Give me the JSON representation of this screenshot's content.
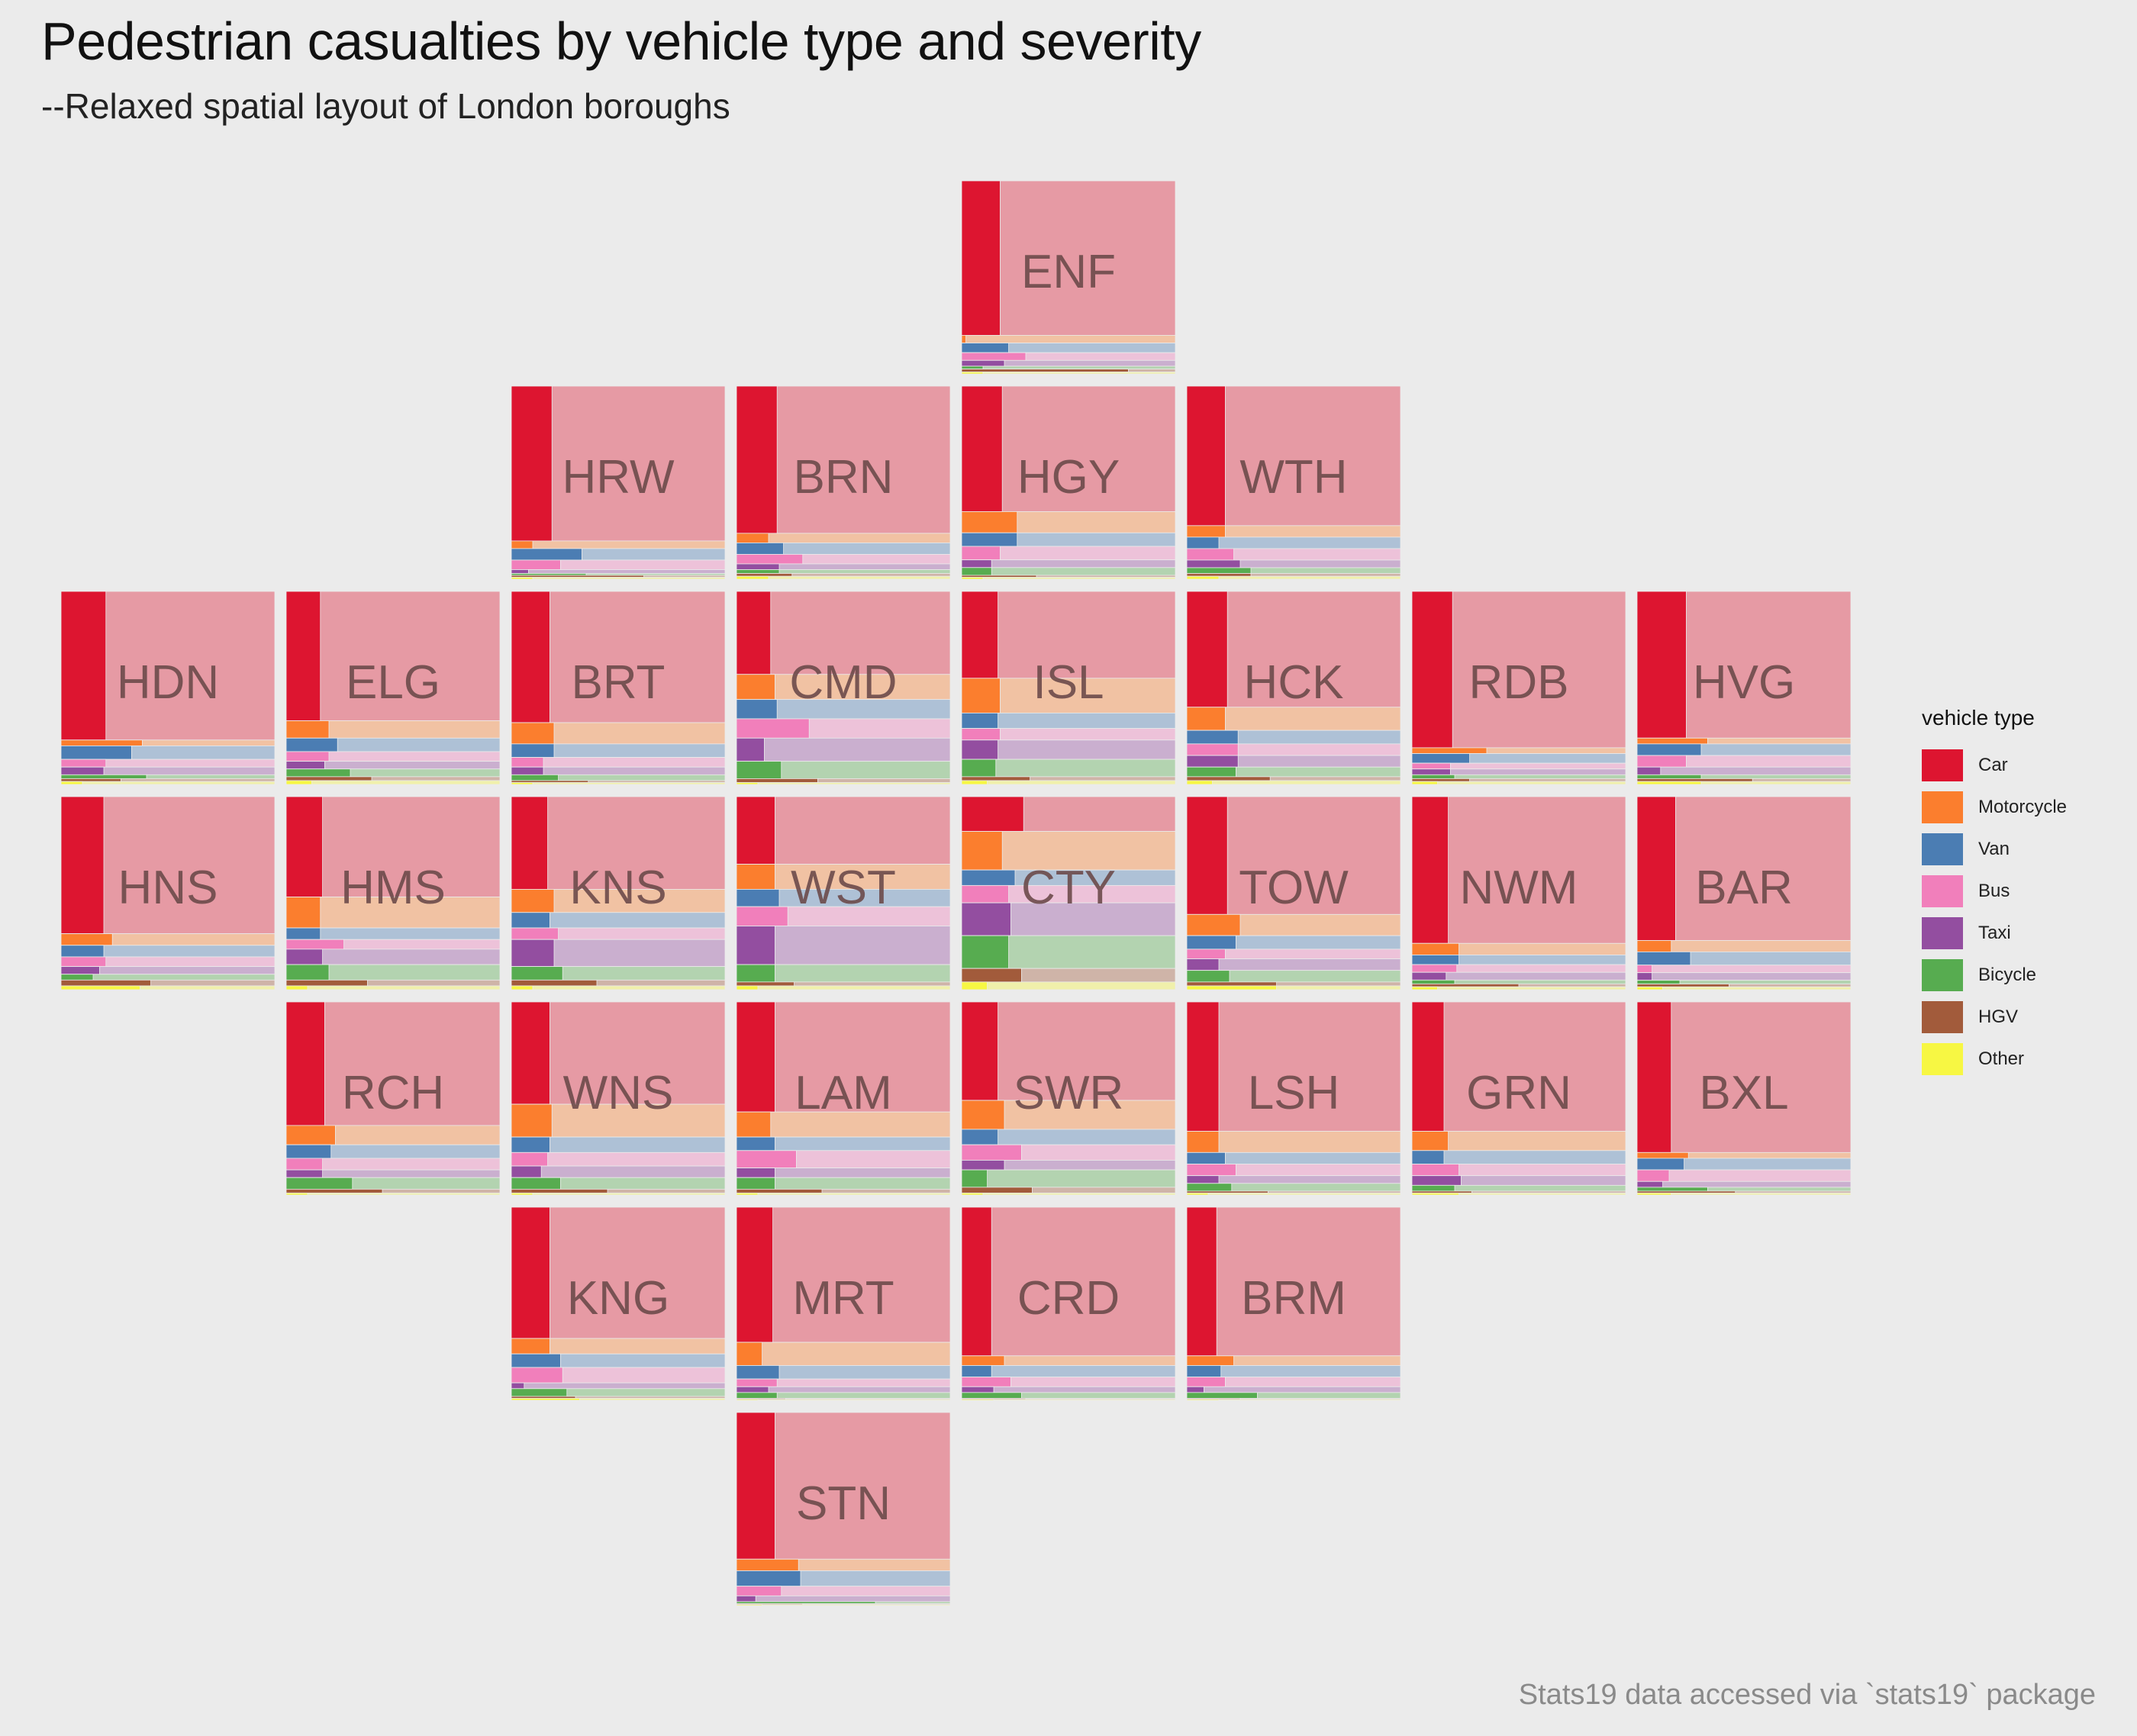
{
  "chart_data": {
    "type": "bar",
    "title": "Pedestrian casualties by vehicle type and severity",
    "subtitle": "--Relaxed spatial layout of London boroughs",
    "caption": "Stats19 data accessed via `stats19` package",
    "legend": {
      "title": "vehicle type",
      "placement": "right",
      "entries": [
        "Car",
        "Motorcycle",
        "Van",
        "Bus",
        "Taxi",
        "Bicycle",
        "HGV",
        "Other"
      ]
    },
    "colors": {
      "Car": "#dd1530",
      "Motorcycle": "#fb7e2e",
      "Van": "#4b7db3",
      "Bus": "#f17fbb",
      "Taxi": "#934ea0",
      "Bicycle": "#57ac50",
      "HGV": "#a25b3b",
      "Other": "#f7f743"
    },
    "series_order": [
      "Car",
      "Motorcycle",
      "Van",
      "Bus",
      "Taxi",
      "Bicycle",
      "HGV",
      "Other"
    ],
    "panels": [
      {
        "borough": "ENF",
        "col": 4,
        "row": 0,
        "share": [
          0.8,
          0.04,
          0.05,
          0.04,
          0.03,
          0.015,
          0.015,
          0.01
        ],
        "ksi": [
          0.18,
          0.02,
          0.22,
          0.3,
          0.2,
          0.1,
          0.78,
          0.1
        ]
      },
      {
        "borough": "HRW",
        "col": 2,
        "row": 1,
        "share": [
          0.81,
          0.04,
          0.06,
          0.05,
          0.02,
          0.01,
          0.01,
          0.01
        ],
        "ksi": [
          0.19,
          0.1,
          0.33,
          0.23,
          0.08,
          0.35,
          0.62,
          0.1
        ]
      },
      {
        "borough": "BRN",
        "col": 3,
        "row": 1,
        "share": [
          0.77,
          0.05,
          0.06,
          0.05,
          0.03,
          0.02,
          0.015,
          0.015
        ],
        "ksi": [
          0.19,
          0.15,
          0.22,
          0.31,
          0.2,
          0.2,
          0.26,
          0.15
        ]
      },
      {
        "borough": "HGY",
        "col": 4,
        "row": 1,
        "share": [
          0.65,
          0.11,
          0.07,
          0.07,
          0.04,
          0.04,
          0.01,
          0.01
        ],
        "ksi": [
          0.19,
          0.26,
          0.26,
          0.18,
          0.14,
          0.14,
          0.35,
          0.1
        ]
      },
      {
        "borough": "WTH",
        "col": 5,
        "row": 1,
        "share": [
          0.73,
          0.06,
          0.06,
          0.06,
          0.04,
          0.03,
          0.015,
          0.015
        ],
        "ksi": [
          0.18,
          0.18,
          0.15,
          0.22,
          0.25,
          0.3,
          0.3,
          0.15
        ]
      },
      {
        "borough": "HDN",
        "col": 0,
        "row": 2,
        "share": [
          0.77,
          0.03,
          0.07,
          0.04,
          0.04,
          0.02,
          0.015,
          0.015
        ],
        "ksi": [
          0.21,
          0.38,
          0.33,
          0.21,
          0.2,
          0.4,
          0.28,
          0.1
        ]
      },
      {
        "borough": "ELG",
        "col": 1,
        "row": 2,
        "share": [
          0.67,
          0.09,
          0.07,
          0.05,
          0.04,
          0.04,
          0.02,
          0.02
        ],
        "ksi": [
          0.16,
          0.2,
          0.24,
          0.2,
          0.18,
          0.3,
          0.4,
          0.12
        ]
      },
      {
        "borough": "BRT",
        "col": 2,
        "row": 2,
        "share": [
          0.68,
          0.11,
          0.07,
          0.05,
          0.04,
          0.03,
          0.01,
          0.01
        ],
        "ksi": [
          0.18,
          0.2,
          0.2,
          0.15,
          0.15,
          0.22,
          0.36,
          0.1
        ]
      },
      {
        "borough": "CMD",
        "col": 3,
        "row": 2,
        "share": [
          0.43,
          0.13,
          0.1,
          0.1,
          0.12,
          0.09,
          0.02,
          0.01
        ],
        "ksi": [
          0.16,
          0.18,
          0.19,
          0.34,
          0.13,
          0.21,
          0.38,
          0.1
        ]
      },
      {
        "borough": "ISL",
        "col": 4,
        "row": 2,
        "share": [
          0.45,
          0.18,
          0.08,
          0.06,
          0.1,
          0.09,
          0.02,
          0.02
        ],
        "ksi": [
          0.17,
          0.18,
          0.17,
          0.18,
          0.17,
          0.16,
          0.32,
          0.12
        ]
      },
      {
        "borough": "HCK",
        "col": 5,
        "row": 2,
        "share": [
          0.6,
          0.12,
          0.07,
          0.06,
          0.06,
          0.05,
          0.02,
          0.02
        ],
        "ksi": [
          0.19,
          0.18,
          0.24,
          0.24,
          0.24,
          0.23,
          0.39,
          0.12
        ]
      },
      {
        "borough": "RDB",
        "col": 6,
        "row": 2,
        "share": [
          0.81,
          0.03,
          0.05,
          0.03,
          0.03,
          0.02,
          0.015,
          0.015
        ],
        "ksi": [
          0.19,
          0.35,
          0.27,
          0.18,
          0.18,
          0.2,
          0.27,
          0.12
        ]
      },
      {
        "borough": "HVG",
        "col": 7,
        "row": 2,
        "share": [
          0.76,
          0.03,
          0.06,
          0.06,
          0.04,
          0.02,
          0.015,
          0.015
        ],
        "ksi": [
          0.23,
          0.33,
          0.3,
          0.23,
          0.11,
          0.3,
          0.54,
          0.3
        ]
      },
      {
        "borough": "HNS",
        "col": 0,
        "row": 3,
        "share": [
          0.71,
          0.06,
          0.06,
          0.05,
          0.04,
          0.03,
          0.03,
          0.02
        ],
        "ksi": [
          0.2,
          0.24,
          0.2,
          0.21,
          0.18,
          0.15,
          0.42,
          0.37
        ]
      },
      {
        "borough": "HMS",
        "col": 1,
        "row": 3,
        "share": [
          0.52,
          0.16,
          0.06,
          0.05,
          0.08,
          0.08,
          0.03,
          0.02
        ],
        "ksi": [
          0.17,
          0.16,
          0.16,
          0.27,
          0.17,
          0.2,
          0.38,
          0.1
        ]
      },
      {
        "borough": "KNS",
        "col": 2,
        "row": 3,
        "share": [
          0.48,
          0.12,
          0.08,
          0.06,
          0.14,
          0.07,
          0.03,
          0.02
        ],
        "ksi": [
          0.17,
          0.2,
          0.18,
          0.22,
          0.2,
          0.24,
          0.4,
          0.1
        ]
      },
      {
        "borough": "WST",
        "col": 3,
        "row": 3,
        "share": [
          0.35,
          0.13,
          0.09,
          0.1,
          0.2,
          0.09,
          0.02,
          0.02
        ],
        "ksi": [
          0.18,
          0.18,
          0.2,
          0.24,
          0.18,
          0.18,
          0.27,
          0.1
        ]
      },
      {
        "borough": "CTY",
        "col": 4,
        "row": 3,
        "share": [
          0.18,
          0.2,
          0.08,
          0.09,
          0.17,
          0.17,
          0.07,
          0.04
        ],
        "ksi": [
          0.29,
          0.19,
          0.25,
          0.22,
          0.23,
          0.22,
          0.28,
          0.12
        ]
      },
      {
        "borough": "TOW",
        "col": 5,
        "row": 3,
        "share": [
          0.61,
          0.11,
          0.07,
          0.05,
          0.06,
          0.06,
          0.02,
          0.02
        ],
        "ksi": [
          0.19,
          0.25,
          0.23,
          0.18,
          0.15,
          0.2,
          0.42,
          0.42
        ]
      },
      {
        "borough": "NWM",
        "col": 6,
        "row": 3,
        "share": [
          0.76,
          0.06,
          0.05,
          0.04,
          0.04,
          0.02,
          0.015,
          0.015
        ],
        "ksi": [
          0.17,
          0.22,
          0.22,
          0.21,
          0.16,
          0.2,
          0.5,
          0.12
        ]
      },
      {
        "borough": "BAR",
        "col": 7,
        "row": 3,
        "share": [
          0.76,
          0.06,
          0.07,
          0.04,
          0.04,
          0.02,
          0.015,
          0.015
        ],
        "ksi": [
          0.18,
          0.16,
          0.25,
          0.07,
          0.07,
          0.2,
          0.43,
          0.12
        ]
      },
      {
        "borough": "RCH",
        "col": 1,
        "row": 4,
        "share": [
          0.64,
          0.1,
          0.07,
          0.06,
          0.04,
          0.06,
          0.02,
          0.01
        ],
        "ksi": [
          0.18,
          0.23,
          0.21,
          0.17,
          0.17,
          0.31,
          0.45,
          0.1
        ]
      },
      {
        "borough": "WNS",
        "col": 2,
        "row": 4,
        "share": [
          0.53,
          0.17,
          0.08,
          0.07,
          0.06,
          0.06,
          0.02,
          0.01
        ],
        "ksi": [
          0.18,
          0.19,
          0.18,
          0.17,
          0.14,
          0.23,
          0.45,
          0.1
        ]
      },
      {
        "borough": "LAM",
        "col": 3,
        "row": 4,
        "share": [
          0.57,
          0.13,
          0.07,
          0.09,
          0.05,
          0.06,
          0.02,
          0.01
        ],
        "ksi": [
          0.18,
          0.16,
          0.18,
          0.28,
          0.18,
          0.18,
          0.4,
          0.1
        ]
      },
      {
        "borough": "SWR",
        "col": 4,
        "row": 4,
        "share": [
          0.51,
          0.15,
          0.08,
          0.08,
          0.05,
          0.09,
          0.03,
          0.01
        ],
        "ksi": [
          0.17,
          0.2,
          0.17,
          0.28,
          0.2,
          0.12,
          0.33,
          0.1
        ]
      },
      {
        "borough": "LSH",
        "col": 5,
        "row": 4,
        "share": [
          0.67,
          0.11,
          0.06,
          0.06,
          0.04,
          0.04,
          0.01,
          0.01
        ],
        "ksi": [
          0.15,
          0.15,
          0.18,
          0.23,
          0.15,
          0.21,
          0.38,
          0.1
        ]
      },
      {
        "borough": "GRN",
        "col": 6,
        "row": 4,
        "share": [
          0.67,
          0.1,
          0.07,
          0.06,
          0.05,
          0.03,
          0.01,
          0.01
        ],
        "ksi": [
          0.15,
          0.17,
          0.15,
          0.22,
          0.23,
          0.2,
          0.28,
          0.22
        ]
      },
      {
        "borough": "BXL",
        "col": 7,
        "row": 4,
        "share": [
          0.78,
          0.03,
          0.06,
          0.06,
          0.03,
          0.02,
          0.01,
          0.01
        ],
        "ksi": [
          0.16,
          0.24,
          0.22,
          0.15,
          0.12,
          0.33,
          0.46,
          0.16
        ]
      },
      {
        "borough": "KNG",
        "col": 2,
        "row": 5,
        "share": [
          0.68,
          0.08,
          0.07,
          0.08,
          0.03,
          0.04,
          0.01,
          0.01
        ],
        "ksi": [
          0.18,
          0.18,
          0.23,
          0.24,
          0.06,
          0.26,
          0.3,
          0.32
        ]
      },
      {
        "borough": "MRT",
        "col": 3,
        "row": 5,
        "share": [
          0.7,
          0.12,
          0.07,
          0.04,
          0.03,
          0.03,
          0.005,
          0.005
        ],
        "ksi": [
          0.17,
          0.12,
          0.2,
          0.19,
          0.15,
          0.19,
          0.23,
          0.1
        ]
      },
      {
        "borough": "CRD",
        "col": 4,
        "row": 5,
        "share": [
          0.77,
          0.05,
          0.06,
          0.05,
          0.03,
          0.03,
          0.005,
          0.005
        ],
        "ksi": [
          0.14,
          0.2,
          0.14,
          0.23,
          0.15,
          0.28,
          0.3,
          0.15
        ]
      },
      {
        "borough": "BRM",
        "col": 5,
        "row": 5,
        "share": [
          0.77,
          0.05,
          0.06,
          0.05,
          0.03,
          0.03,
          0.005,
          0.005
        ],
        "ksi": [
          0.14,
          0.22,
          0.16,
          0.18,
          0.08,
          0.33,
          0.25,
          0.15
        ]
      },
      {
        "borough": "STN",
        "col": 3,
        "row": 6,
        "share": [
          0.76,
          0.06,
          0.08,
          0.05,
          0.03,
          0.01,
          0.005,
          0.005
        ],
        "ksi": [
          0.18,
          0.29,
          0.3,
          0.21,
          0.09,
          0.65,
          0.31,
          0.12
        ]
      }
    ]
  }
}
